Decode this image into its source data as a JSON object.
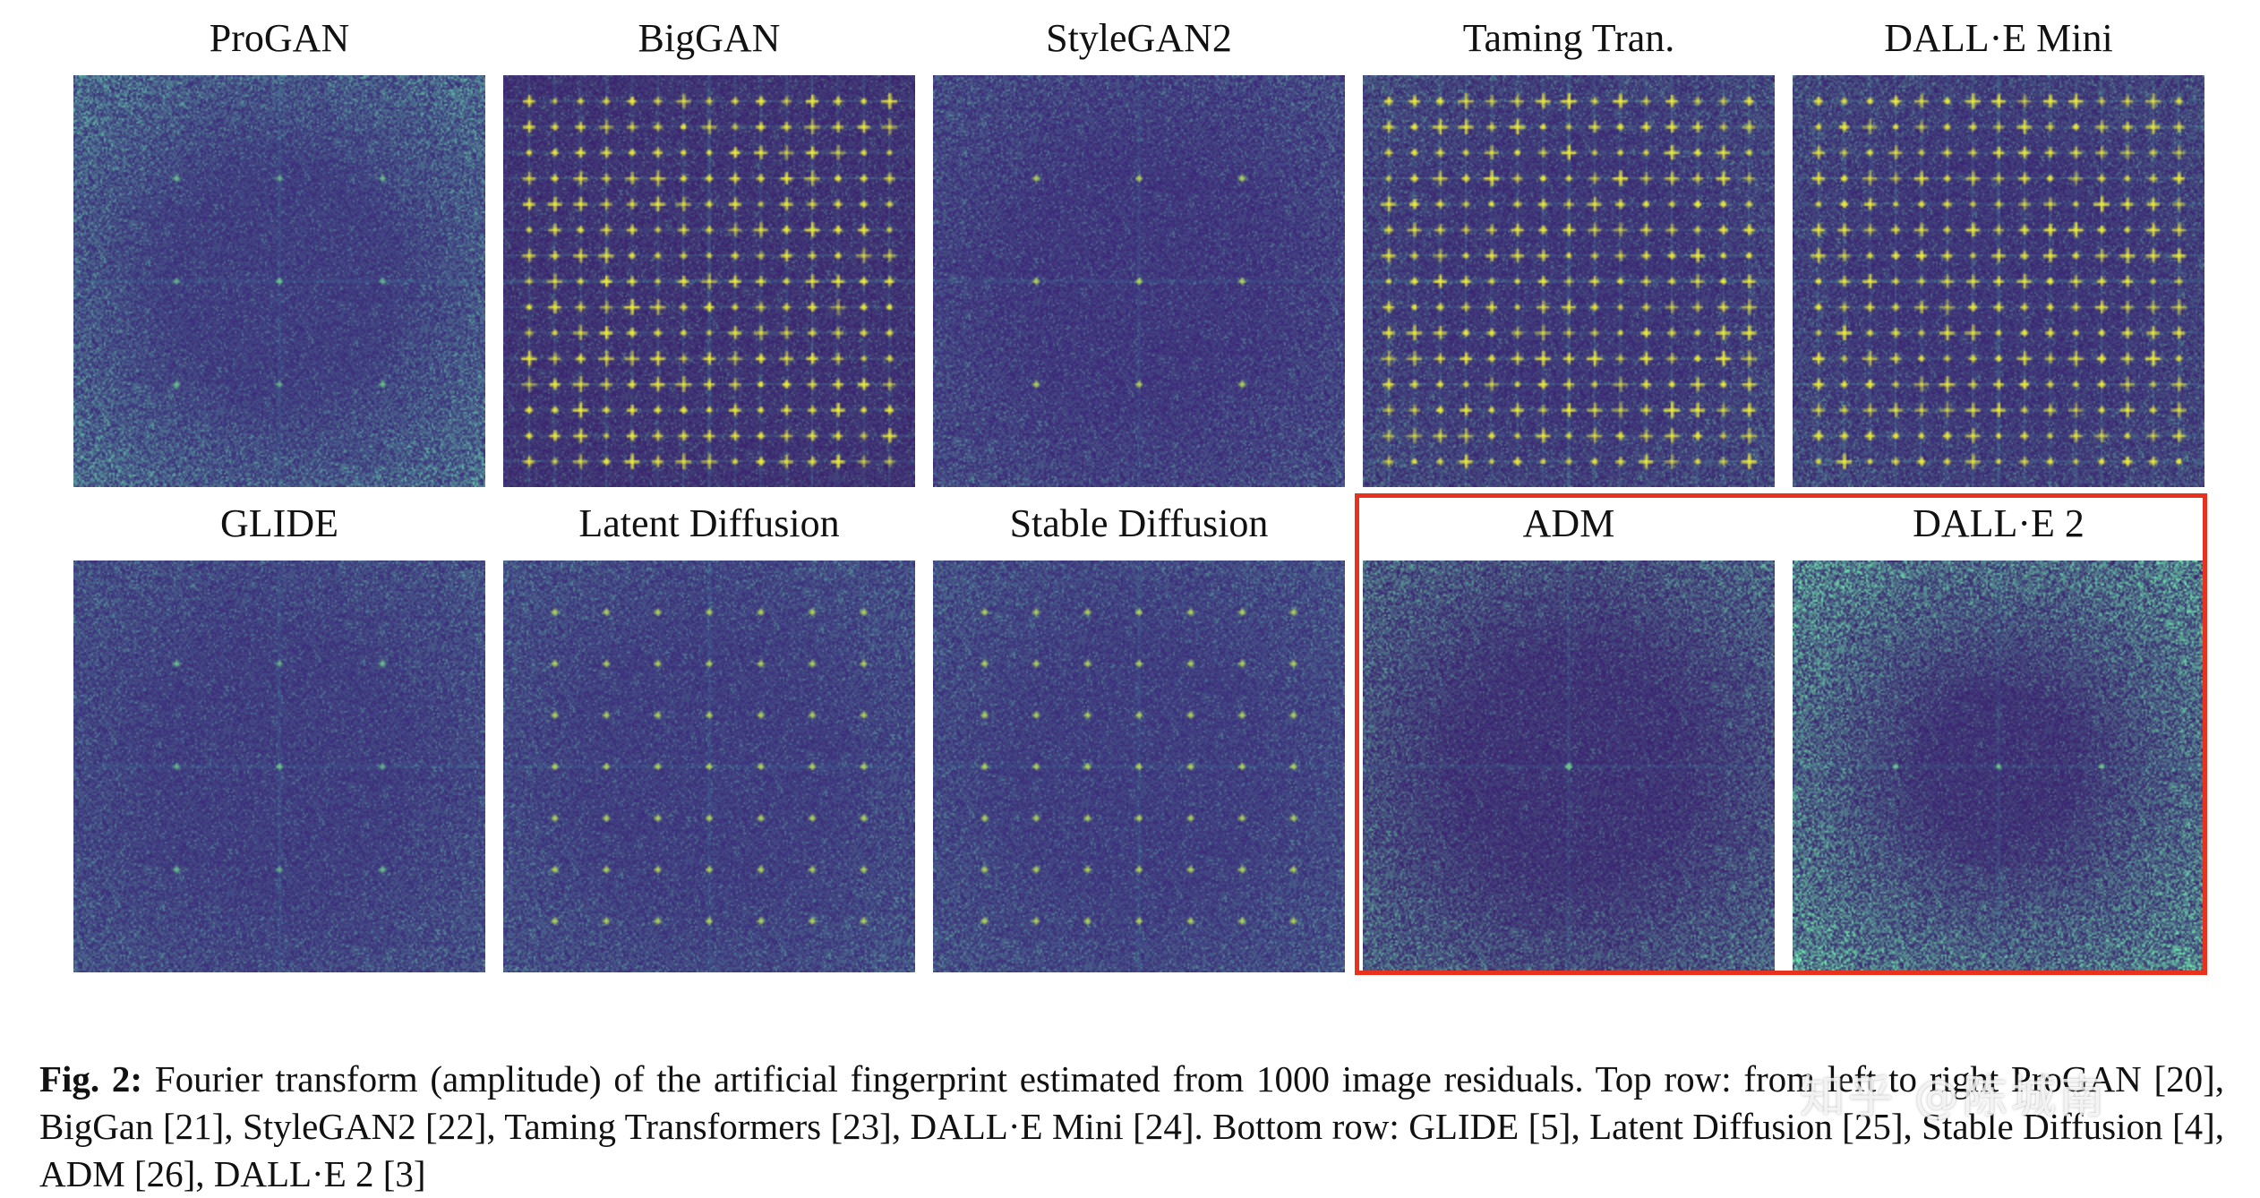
{
  "figure": {
    "panels": [
      {
        "label": "ProGAN",
        "bg": "#3b2a7a",
        "pattern": "grid4-sparse",
        "noise": "edge-bright",
        "peaks": "faint"
      },
      {
        "label": "BigGAN",
        "bg": "#3a1f6e",
        "pattern": "dense-grid",
        "noise": "dark",
        "peaks": "bright-yellow"
      },
      {
        "label": "StyleGAN2",
        "bg": "#3b2478",
        "pattern": "grid4",
        "noise": "mid",
        "peaks": "medium"
      },
      {
        "label": "Taming Tran.",
        "bg": "#3a2272",
        "pattern": "grid16",
        "noise": "mid",
        "peaks": "bright-yellow"
      },
      {
        "label": "DALL·E Mini",
        "bg": "#3a2272",
        "pattern": "grid16",
        "noise": "mid",
        "peaks": "bright-yellow"
      },
      {
        "label": "GLIDE",
        "bg": "#3b2a7a",
        "pattern": "grid4-sparse",
        "noise": "mid",
        "peaks": "faint"
      },
      {
        "label": "Latent Diffusion",
        "bg": "#3b2a7a",
        "pattern": "grid8",
        "noise": "mid",
        "peaks": "medium"
      },
      {
        "label": "Stable Diffusion",
        "bg": "#3b2a7a",
        "pattern": "grid8",
        "noise": "mid",
        "peaks": "medium"
      },
      {
        "label": "ADM",
        "bg": "#3a2070",
        "pattern": "center-only",
        "noise": "edge-bright",
        "peaks": "faint"
      },
      {
        "label": "DALL·E 2",
        "bg": "#3a2070",
        "pattern": "horizontal-line",
        "noise": "edge-bright-strong",
        "peaks": "faint"
      }
    ],
    "highlight_color": "#e8321e"
  },
  "caption": {
    "label": "Fig. 2:",
    "text": "Fourier transform (amplitude) of the artificial fingerprint estimated from 1000 image residuals. Top row: from left to right ProGAN [20], BigGan [21], StyleGAN2 [22], Taming Transformers [23], DALL·E Mini [24]. Bottom row: GLIDE [5], Latent Diffusion [25], Stable Diffusion [4], ADM [26], DALL·E 2 [3]"
  },
  "watermark": {
    "text": "知乎 @陈城南"
  }
}
